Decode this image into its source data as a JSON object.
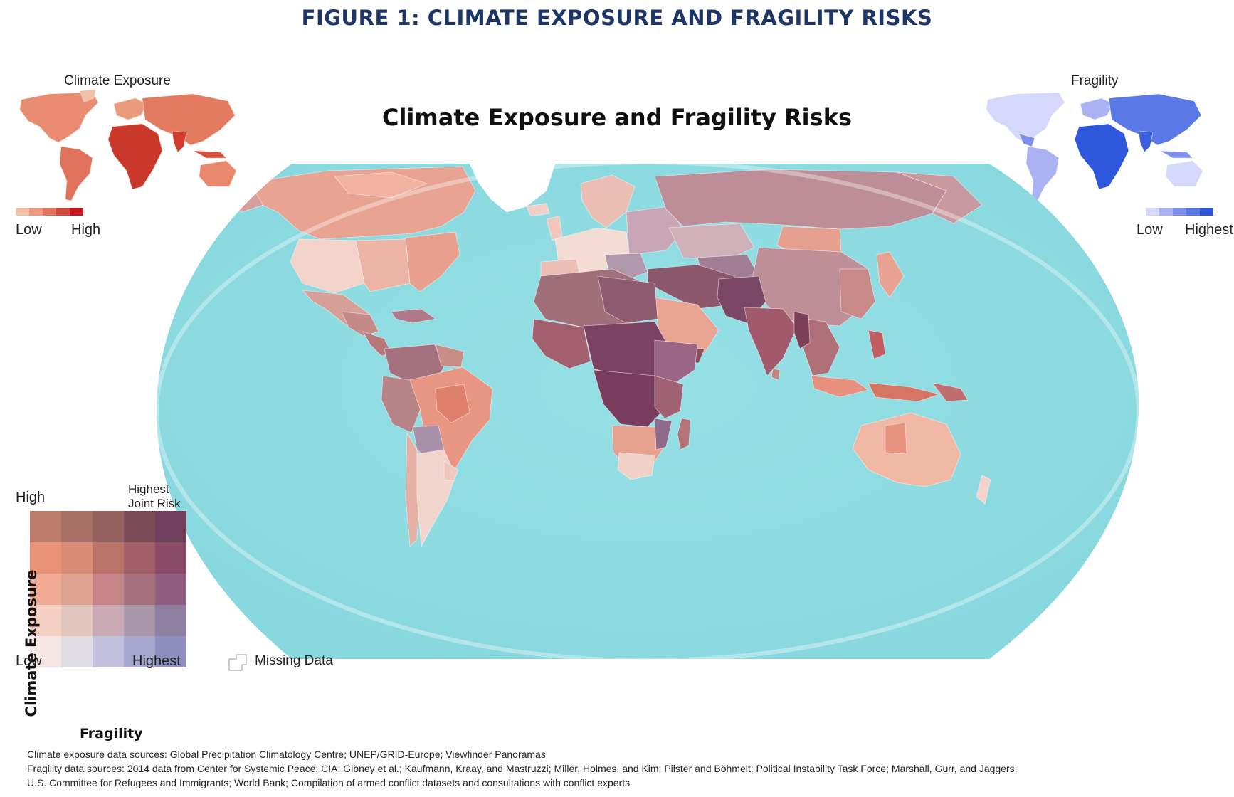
{
  "figure_title": "FIGURE 1: CLIMATE EXPOSURE AND FRAGILITY RISKS",
  "map_title": "Climate Exposure and Fragility Risks",
  "climate_inset": {
    "title": "Climate Exposure",
    "legend_low": "Low",
    "legend_high": "High",
    "colors": [
      "#f3bfa6",
      "#eb9a7e",
      "#e2755d",
      "#d64a3c",
      "#c8151f"
    ]
  },
  "fragility_inset": {
    "title": "Fragility",
    "legend_low": "Low",
    "legend_high": "Highest",
    "colors": [
      "#d6d8fb",
      "#aab2f3",
      "#7f90ec",
      "#5a78e6",
      "#2f57dc"
    ]
  },
  "bivariate_legend": {
    "top_left": "High",
    "top_right": "Highest Joint Risk",
    "y_axis": "Climate Exposure",
    "x_axis": "Fragility",
    "x_low": "Low",
    "x_high": "Highest",
    "rows_high_to_low": [
      [
        "#bd7d6d",
        "#a97065",
        "#95625f",
        "#7b4c5a",
        "#6f3f5c"
      ],
      [
        "#e99479",
        "#d98b76",
        "#b97369",
        "#a05e67",
        "#8b4b66"
      ],
      [
        "#f2ab95",
        "#dea291",
        "#c68689",
        "#a6707f",
        "#8f5e80"
      ],
      [
        "#f4cfc2",
        "#e1c4bb",
        "#c9aab4",
        "#a895a8",
        "#8e7fa1"
      ],
      [
        "#f5e6e6",
        "#e0dde4",
        "#c2c0dc",
        "#a7a7d0",
        "#8e8ebf"
      ]
    ]
  },
  "missing_data_label": "Missing Data",
  "map_colors": {
    "ocean": "#8fdde3",
    "ocean_deep": "#7dd2dc",
    "greenland": "#ffffff"
  },
  "sources": {
    "climate": "Climate exposure data sources: Global Precipitation Climatology Centre; UNEP/GRID-Europe; Viewfinder Panoramas",
    "fragility_line1": "Fragility data sources: 2014 data from Center for Systemic Peace; CIA; Gibney et al.; Kaufmann, Kraay, and Mastruzzi; Miller, Holmes, and Kim; Pilster and Böhmelt; Political Instability Task Force; Marshall, Gurr, and Jaggers;",
    "fragility_line2": "U.S. Committee for Refugees and Immigrants; World Bank; Compilation of armed conflict datasets and consultations with conflict experts"
  }
}
